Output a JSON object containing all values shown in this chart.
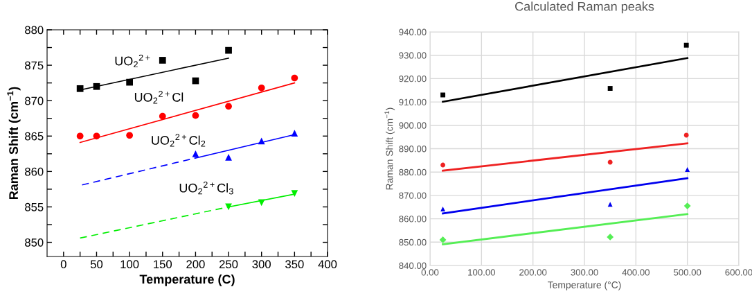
{
  "chart_data": [
    {
      "type": "scatter",
      "xlabel": "Temperature (C)",
      "ylabel": "Raman Shift (cm$^{−1}$)",
      "xlim": [
        -25,
        400
      ],
      "ylim": [
        848,
        880
      ],
      "xticks": [
        0,
        {
          "value": 25,
          "label": null
        },
        50,
        {
          "value": 75,
          "label": null
        },
        100,
        {
          "value": 125,
          "label": null
        },
        150,
        {
          "value": 175,
          "label": null
        },
        200,
        {
          "value": 225,
          "label": null
        },
        250,
        {
          "value": 275,
          "label": null
        },
        300,
        {
          "value": 325,
          "label": null
        },
        350,
        {
          "value": 375,
          "label": null
        },
        400
      ],
      "yticks": [
        850,
        {
          "value": 852.5,
          "label": null
        },
        855,
        {
          "value": 857.5,
          "label": null
        },
        860,
        {
          "value": 862.5,
          "label": null
        },
        865,
        {
          "value": 867.5,
          "label": null
        },
        870,
        {
          "value": 872.5,
          "label": null
        },
        875,
        {
          "value": 877.5,
          "label": null
        },
        880
      ],
      "grid": false,
      "legend": false,
      "series": [
        {
          "color": "#000000",
          "marker": "square",
          "x": [
            25,
            50,
            100,
            150,
            200,
            250
          ],
          "values": [
            871.7,
            872.0,
            872.6,
            875.7,
            872.8,
            877.1
          ]
        },
        {
          "color": "#ff0000",
          "marker": "circle",
          "x": [
            25,
            50,
            100,
            150,
            200,
            250,
            300,
            350
          ],
          "values": [
            865.0,
            865.0,
            865.1,
            867.8,
            867.9,
            869.2,
            871.8,
            873.2
          ]
        },
        {
          "color": "#0000ff",
          "marker": "triangle",
          "x": [
            200,
            250,
            300,
            350
          ],
          "values": [
            862.5,
            862.0,
            864.3,
            865.4
          ]
        },
        {
          "color": "#00ee00",
          "marker": "triangle_down",
          "x": [
            250,
            300,
            350
          ],
          "values": [
            855.0,
            855.6,
            856.9
          ]
        },
        {
          "type": "line",
          "color": "#000000",
          "line_style": "solid",
          "x": [
            25,
            250
          ],
          "values": [
            871.5,
            876.0
          ]
        },
        {
          "type": "line",
          "color": "#ff0000",
          "line_style": "solid",
          "x": [
            25,
            350
          ],
          "values": [
            864.1,
            872.5
          ]
        },
        {
          "type": "line",
          "color": "#0000ff",
          "line_style": "solid",
          "x": [
            200,
            350
          ],
          "values": [
            861.9,
            865.2
          ]
        },
        {
          "type": "line",
          "color": "#0000ff",
          "line_style": "dashed",
          "x": [
            28,
            200
          ],
          "values": [
            858.1,
            861.9
          ]
        },
        {
          "type": "line",
          "color": "#00ee00",
          "line_style": "solid",
          "x": [
            250,
            350
          ],
          "values": [
            855.0,
            856.8
          ]
        },
        {
          "type": "line",
          "color": "#00ee00",
          "line_style": "dashed",
          "x": [
            25,
            250
          ],
          "values": [
            850.6,
            855.0
          ]
        }
      ],
      "annotations": [
        "UO$_{2}$$^{2+}$",
        "UO$_{2}$$^{2+}$Cl",
        "UO$_{2}$$^{2+}$Cl$_{2}$",
        "UO$_{2}$$^{2+}$Cl$_{3}$"
      ]
    },
    {
      "type": "scatter",
      "title": "Calculated Raman peaks",
      "xlabel": "Temperature (°C)",
      "ylabel": "Raman Shift (cm$^{−1}$)",
      "xlim": [
        0,
        600
      ],
      "ylim": [
        840,
        940
      ],
      "xticks": [
        {
          "value": 0,
          "label": "0.00"
        },
        {
          "value": 100,
          "label": "100.00"
        },
        {
          "value": 200,
          "label": "200.00"
        },
        {
          "value": 300,
          "label": "300.00"
        },
        {
          "value": 400,
          "label": "400.00"
        },
        {
          "value": 500,
          "label": "500.00"
        },
        {
          "value": 600,
          "label": "600.00"
        }
      ],
      "yticks": [
        {
          "value": 840,
          "label": "840.00"
        },
        {
          "value": 850,
          "label": "850.00"
        },
        {
          "value": 860,
          "label": "860.00"
        },
        {
          "value": 870,
          "label": "870.00"
        },
        {
          "value": 880,
          "label": "880.00"
        },
        {
          "value": 890,
          "label": "890.00"
        },
        {
          "value": 900,
          "label": "900.00"
        },
        {
          "value": 910,
          "label": "910.00"
        },
        {
          "value": 920,
          "label": "920.00"
        },
        {
          "value": 930,
          "label": "930.00"
        },
        {
          "value": 940,
          "label": "940.00"
        }
      ],
      "grid": true,
      "legend": false,
      "series": [
        {
          "color": "#000000",
          "marker": "square",
          "x": [
            25,
            350,
            498
          ],
          "values": [
            913.0,
            915.8,
            934.3
          ]
        },
        {
          "color": "#ee2222",
          "marker": "circle",
          "x": [
            25,
            350,
            498
          ],
          "values": [
            883.0,
            884.2,
            895.8
          ]
        },
        {
          "color": "#0000ee",
          "marker": "triangle",
          "x": [
            25,
            350,
            500
          ],
          "values": [
            864.2,
            866.2,
            881.1
          ]
        },
        {
          "color": "#55ee55",
          "marker": "diamond",
          "x": [
            25,
            350,
            500
          ],
          "values": [
            851.0,
            852.2,
            865.5
          ]
        },
        {
          "type": "line",
          "color": "#000000",
          "line_style": "solid",
          "x": [
            25,
            500
          ],
          "values": [
            910.1,
            928.8
          ]
        },
        {
          "type": "line",
          "color": "#ee2222",
          "line_style": "solid",
          "x": [
            25,
            500
          ],
          "values": [
            880.6,
            892.3
          ]
        },
        {
          "type": "line",
          "color": "#0000ee",
          "line_style": "solid",
          "x": [
            25,
            500
          ],
          "values": [
            862.3,
            877.4
          ]
        },
        {
          "type": "line",
          "color": "#55ee55",
          "line_style": "solid",
          "x": [
            25,
            500
          ],
          "values": [
            849.1,
            862.0
          ]
        }
      ]
    }
  ]
}
